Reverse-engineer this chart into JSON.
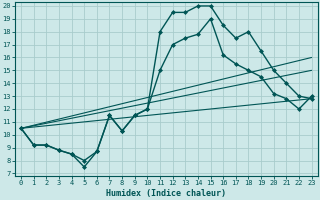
{
  "xlabel": "Humidex (Indice chaleur)",
  "bg_color": "#cde8e8",
  "grid_color": "#a8cccc",
  "line_color": "#005555",
  "xlim": [
    0,
    23
  ],
  "ylim": [
    7,
    20
  ],
  "xticks": [
    0,
    1,
    2,
    3,
    4,
    5,
    6,
    7,
    8,
    9,
    10,
    11,
    12,
    13,
    14,
    15,
    16,
    17,
    18,
    19,
    20,
    21,
    22,
    23
  ],
  "yticks": [
    7,
    8,
    9,
    10,
    11,
    12,
    13,
    14,
    15,
    16,
    17,
    18,
    19,
    20
  ],
  "curve1_x": [
    0,
    1,
    2,
    3,
    4,
    5,
    6,
    7,
    8,
    9,
    10,
    11,
    12,
    13,
    14,
    15,
    16,
    17,
    18,
    19,
    20,
    21,
    22,
    23
  ],
  "curve1_y": [
    10.5,
    9.2,
    9.2,
    8.8,
    8.5,
    7.5,
    8.7,
    11.5,
    10.3,
    11.5,
    12.0,
    18.0,
    19.5,
    19.5,
    20.0,
    20.0,
    18.5,
    17.5,
    18.0,
    16.5,
    15.0,
    14.0,
    13.0,
    12.8
  ],
  "curve2_x": [
    0,
    1,
    2,
    3,
    4,
    5,
    6,
    7,
    8,
    9,
    10,
    11,
    12,
    13,
    14,
    15,
    16,
    17,
    18,
    19,
    20,
    21,
    22,
    23
  ],
  "curve2_y": [
    10.5,
    9.2,
    9.2,
    8.8,
    8.5,
    8.0,
    8.7,
    11.5,
    10.3,
    11.5,
    12.0,
    15.0,
    17.0,
    17.5,
    17.8,
    19.0,
    16.2,
    15.5,
    15.0,
    14.5,
    13.2,
    12.8,
    12.0,
    13.0
  ],
  "line1_x": [
    0,
    23
  ],
  "line1_y": [
    10.5,
    16.0
  ],
  "line2_x": [
    0,
    23
  ],
  "line2_y": [
    10.5,
    15.0
  ],
  "line3_x": [
    0,
    23
  ],
  "line3_y": [
    10.5,
    12.8
  ]
}
